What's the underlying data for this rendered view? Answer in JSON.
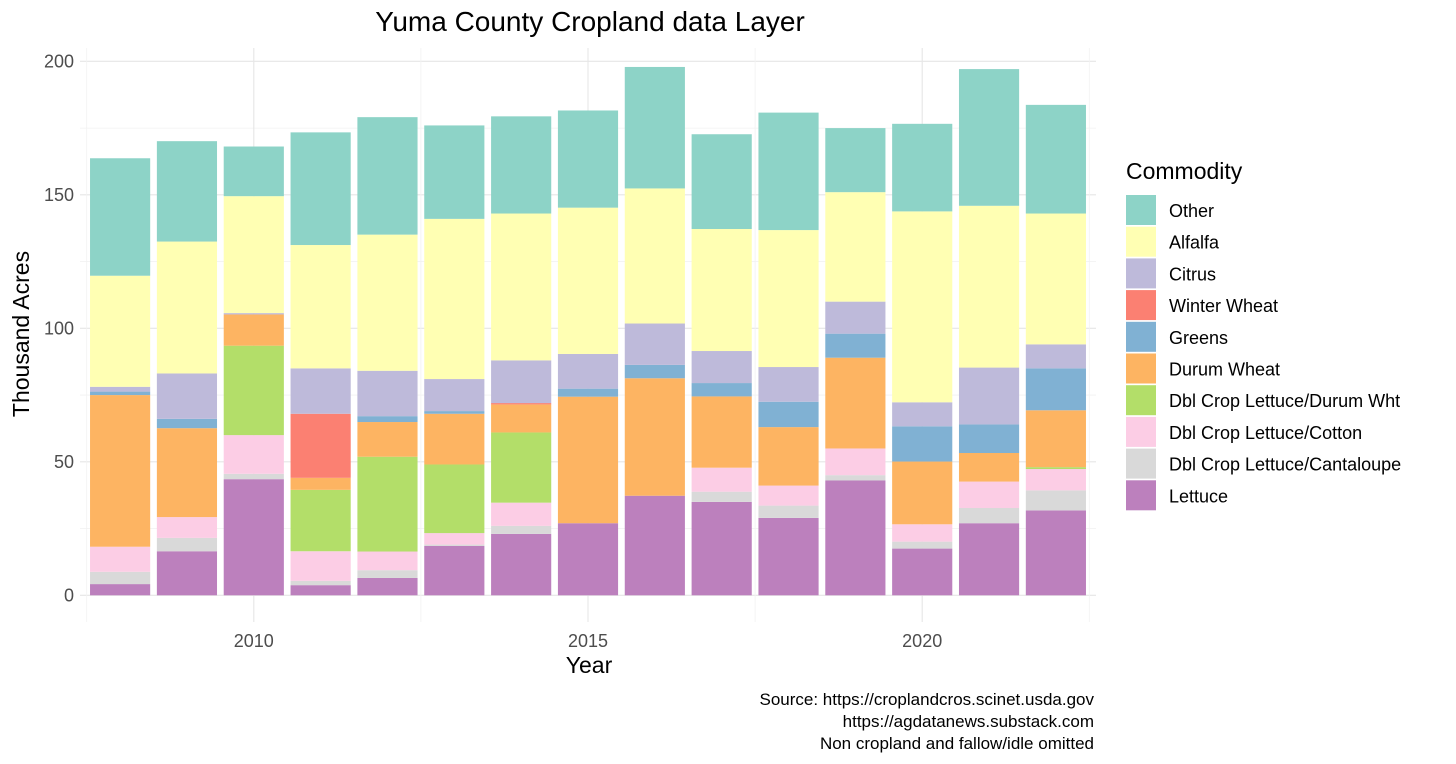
{
  "chart_data": {
    "type": "bar",
    "stacked": true,
    "title": "Yuma County Cropland data Layer",
    "xlabel": "Year",
    "ylabel": "Thousand Acres",
    "ylim": [
      -10,
      205
    ],
    "xlim": [
      2007.4,
      2022.6
    ],
    "xticks": [
      2010,
      2015,
      2020
    ],
    "yticks": [
      0,
      50,
      100,
      150,
      200
    ],
    "grid": true,
    "legend_title": "Commodity",
    "legend_position": "right",
    "caption": [
      "Source: https://croplandcros.scinet.usda.gov",
      "https://agdatanews.substack.com",
      "Non cropland and fallow/idle omitted"
    ],
    "categories": [
      2008,
      2009,
      2010,
      2011,
      2012,
      2013,
      2014,
      2015,
      2016,
      2017,
      2018,
      2019,
      2020,
      2021,
      2022
    ],
    "series": [
      {
        "name": "Lettuce",
        "color": "#bc80bd",
        "values": [
          4.2,
          16.5,
          43.5,
          3.8,
          6.5,
          18.5,
          23.0,
          27.0,
          37.3,
          35.0,
          29.0,
          43.0,
          17.5,
          27.0,
          31.8
        ]
      },
      {
        "name": "Dbl Crop Lettuce/Cantaloupe",
        "color": "#d9d9d9",
        "values": [
          4.6,
          5.0,
          2.0,
          1.6,
          2.9,
          0.5,
          3.0,
          0,
          0,
          3.8,
          4.6,
          2.0,
          2.6,
          5.7,
          7.5
        ]
      },
      {
        "name": "Dbl Crop Lettuce/Cotton",
        "color": "#fccde5",
        "values": [
          9.4,
          7.8,
          14.5,
          11.1,
          7.0,
          4.3,
          8.7,
          0,
          0,
          9.0,
          7.5,
          10.0,
          6.5,
          9.9,
          8.0
        ]
      },
      {
        "name": "Dbl Crop Lettuce/Durum Wht",
        "color": "#b3de69",
        "values": [
          0,
          0,
          33.5,
          23.0,
          35.5,
          25.7,
          26.3,
          0,
          0,
          0,
          0,
          0,
          0,
          0,
          0.7
        ]
      },
      {
        "name": "Durum Wheat",
        "color": "#fdb462",
        "values": [
          56.8,
          33.3,
          11.7,
          4.5,
          13.0,
          19.0,
          10.5,
          47.4,
          44.0,
          26.7,
          21.9,
          34.0,
          23.5,
          10.7,
          21.3
        ]
      },
      {
        "name": "Greens",
        "color": "#80b1d3",
        "values": [
          1.3,
          3.5,
          0,
          0,
          2.2,
          1.0,
          0,
          3.0,
          5.0,
          5.0,
          9.5,
          9.0,
          13.2,
          10.7,
          15.7
        ]
      },
      {
        "name": "Winter Wheat",
        "color": "#fb8072",
        "values": [
          0,
          0,
          0,
          24.0,
          0,
          0,
          0.5,
          0,
          0,
          0,
          0,
          0,
          0,
          0,
          0
        ]
      },
      {
        "name": "Citrus",
        "color": "#bebada",
        "values": [
          1.8,
          17.0,
          0.5,
          17.0,
          17.0,
          12.0,
          16.0,
          13.0,
          15.5,
          12.0,
          13.0,
          12.0,
          9.0,
          21.3,
          9.0
        ]
      },
      {
        "name": "Alfalfa",
        "color": "#ffffb3",
        "values": [
          41.6,
          49.4,
          43.8,
          46.2,
          51.0,
          60.0,
          55.0,
          54.8,
          50.6,
          45.7,
          51.3,
          41.0,
          71.5,
          60.6,
          49.0
        ]
      },
      {
        "name": "Other",
        "color": "#8dd3c7",
        "values": [
          44.0,
          37.6,
          18.6,
          42.2,
          44.0,
          35.0,
          36.4,
          36.4,
          45.5,
          35.5,
          44.0,
          24.0,
          32.8,
          51.2,
          40.7
        ]
      }
    ],
    "legend_order": [
      "Other",
      "Alfalfa",
      "Citrus",
      "Winter Wheat",
      "Greens",
      "Durum Wheat",
      "Dbl Crop Lettuce/Durum Wht",
      "Dbl Crop Lettuce/Cotton",
      "Dbl Crop Lettuce/Cantaloupe",
      "Lettuce"
    ]
  }
}
